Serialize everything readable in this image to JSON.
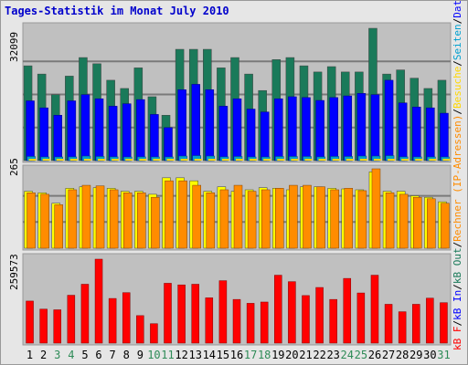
{
  "title": "Tages-Statistik im Monat July 2010",
  "colors": {
    "title": "#0000cc",
    "panel_bg": "#c0c0c0",
    "grid": "#7a7a7a",
    "weekday_label": "#000000",
    "weekend_label": "#2e8b57",
    "legend_sep": "#000000"
  },
  "chart_data": [
    {
      "type": "bar",
      "panel": "top",
      "max_label": "32099",
      "ylim": [
        0,
        32099
      ],
      "categories": [
        "1",
        "2",
        "3",
        "4",
        "5",
        "6",
        "7",
        "8",
        "9",
        "10",
        "11",
        "12",
        "13",
        "14",
        "15",
        "16",
        "17",
        "18",
        "19",
        "20",
        "21",
        "22",
        "23",
        "24",
        "25",
        "26",
        "27",
        "28",
        "29",
        "30",
        "31"
      ],
      "weekend_days": [
        "3",
        "4",
        "10",
        "11",
        "17",
        "18",
        "24",
        "25",
        "31"
      ],
      "series": [
        {
          "name": "Anfragen",
          "color": "#1a7a5a",
          "values": [
            23000,
            21000,
            16000,
            20500,
            25000,
            23500,
            19500,
            17500,
            22500,
            15500,
            11000,
            27000,
            27000,
            27000,
            22500,
            25000,
            21000,
            17000,
            24500,
            25000,
            23000,
            21500,
            22800,
            21500,
            21500,
            32099,
            21000,
            22000,
            20000,
            17500,
            19500
          ]
        },
        {
          "name": "Dateien",
          "color": "#0000ff",
          "values": [
            14500,
            12800,
            11000,
            14500,
            16000,
            15000,
            13200,
            13800,
            14800,
            11200,
            8000,
            17200,
            18500,
            17200,
            13200,
            15000,
            12500,
            11800,
            15000,
            15500,
            15300,
            14600,
            15300,
            15700,
            16300,
            16000,
            19500,
            14000,
            13000,
            12800,
            11500
          ]
        },
        {
          "name": "Seiten",
          "color": "#00a0d0",
          "values": [
            1000,
            800,
            700,
            900,
            1100,
            1000,
            900,
            800,
            900,
            700,
            500,
            1100,
            1200,
            1100,
            900,
            1000,
            800,
            700,
            1000,
            1000,
            1000,
            900,
            1000,
            1000,
            1100,
            1100,
            1200,
            900,
            900,
            800,
            700
          ]
        },
        {
          "name": "Besuche",
          "color": "#ffd700",
          "values": [
            265,
            240,
            190,
            220,
            255,
            245,
            230,
            200,
            235,
            195,
            160,
            265,
            260,
            260,
            230,
            245,
            225,
            215,
            240,
            250,
            245,
            230,
            245,
            240,
            240,
            265,
            230,
            215,
            220,
            210,
            190
          ]
        }
      ]
    },
    {
      "type": "bar",
      "panel": "middle",
      "max_label": "265",
      "ylim": [
        0,
        265
      ],
      "categories": [
        "1",
        "2",
        "3",
        "4",
        "5",
        "6",
        "7",
        "8",
        "9",
        "10",
        "11",
        "12",
        "13",
        "14",
        "15",
        "16",
        "17",
        "18",
        "19",
        "20",
        "21",
        "22",
        "23",
        "24",
        "25",
        "26",
        "27",
        "28",
        "29",
        "30",
        "31"
      ],
      "series": [
        {
          "name": "Rechner (IP-Adressen)",
          "color": "#ffff00",
          "values": [
            190,
            185,
            150,
            200,
            205,
            202,
            200,
            190,
            190,
            180,
            235,
            235,
            225,
            190,
            205,
            190,
            195,
            202,
            200,
            195,
            205,
            205,
            200,
            198,
            195,
            255,
            190,
            190,
            175,
            170,
            155
          ]
        },
        {
          "name": "Besuche",
          "color": "#ff8c00",
          "values": [
            185,
            180,
            145,
            195,
            210,
            208,
            195,
            185,
            185,
            170,
            225,
            225,
            210,
            185,
            195,
            210,
            190,
            195,
            200,
            210,
            210,
            205,
            195,
            200,
            192,
            265,
            185,
            180,
            170,
            165,
            150
          ]
        }
      ]
    },
    {
      "type": "bar",
      "panel": "bottom",
      "max_label": "259573",
      "ylim": [
        0,
        259573
      ],
      "categories": [
        "1",
        "2",
        "3",
        "4",
        "5",
        "6",
        "7",
        "8",
        "9",
        "10",
        "11",
        "12",
        "13",
        "14",
        "15",
        "16",
        "17",
        "18",
        "19",
        "20",
        "21",
        "22",
        "23",
        "24",
        "25",
        "26",
        "27",
        "28",
        "29",
        "30",
        "31"
      ],
      "series": [
        {
          "name": "kB F",
          "color": "#ff0000",
          "values": [
            130000,
            105000,
            103000,
            148000,
            182000,
            259573,
            138000,
            156000,
            85000,
            60000,
            185000,
            180000,
            182000,
            140000,
            193000,
            135000,
            123000,
            127000,
            210000,
            190000,
            147000,
            172000,
            135000,
            200000,
            155000,
            210000,
            120000,
            97000,
            120000,
            139000,
            125000
          ]
        }
      ]
    }
  ],
  "legend": [
    {
      "text": "kB F",
      "color": "#ff0000"
    },
    {
      "text": "kB In",
      "color": "#0000ff"
    },
    {
      "text": "kB Out",
      "color": "#1a7a5a"
    },
    {
      "text": "Rechner (IP-Adressen)",
      "color": "#ff8c00"
    },
    {
      "text": "Besuche",
      "color": "#ffd700"
    },
    {
      "text": "Seiten",
      "color": "#00a0d0"
    },
    {
      "text": "Dateien",
      "color": "#0000ff"
    },
    {
      "text": "Anfragen",
      "color": "#1a7a5a"
    }
  ]
}
